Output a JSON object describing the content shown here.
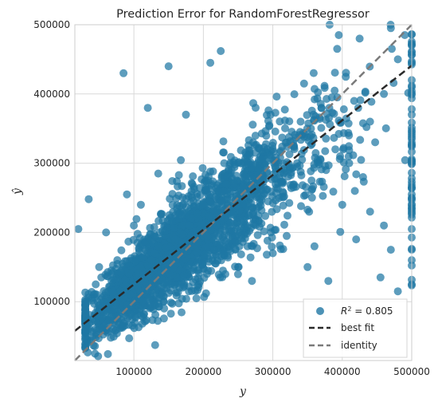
{
  "chart_data": {
    "type": "scatter",
    "title": "Prediction Error for RandomForestRegressor",
    "xlabel": "y",
    "ylabel": "ŷ",
    "xlim": [
      15000,
      500000
    ],
    "ylim": [
      15000,
      500000
    ],
    "x_ticks": [
      100000,
      200000,
      300000,
      400000,
      500000
    ],
    "y_ticks": [
      100000,
      200000,
      300000,
      400000,
      500000
    ],
    "x_tick_labels": [
      "100000",
      "200000",
      "300000",
      "400000",
      "500000"
    ],
    "y_tick_labels": [
      "100000",
      "200000",
      "300000",
      "400000",
      "500000"
    ],
    "grid": true,
    "legend_position": "bottom-right",
    "colors": {
      "points": "#1f77a4",
      "best_fit": "#2a2a2a",
      "identity": "#7a7a7a",
      "grid": "#d9d9d9"
    },
    "best_fit": {
      "slope": 0.79,
      "intercept": 46000
    },
    "identity": {
      "slope": 1,
      "intercept": 0
    },
    "legend": {
      "points_prefix": "R",
      "points_sup": "2",
      "points_suffix": " = 0.805",
      "best_fit": "best fit",
      "identity": "identity"
    },
    "sample_points": [
      [
        20000,
        205000
      ],
      [
        35000,
        248000
      ],
      [
        60000,
        88000
      ],
      [
        85000,
        430000
      ],
      [
        150000,
        440000
      ],
      [
        210000,
        445000
      ],
      [
        225000,
        462000
      ],
      [
        345000,
        415000
      ],
      [
        380000,
        130000
      ],
      [
        455000,
        135000
      ],
      [
        430000,
        280000
      ],
      [
        460000,
        210000
      ],
      [
        470000,
        175000
      ],
      [
        420000,
        190000
      ],
      [
        440000,
        230000
      ],
      [
        480000,
        115000
      ],
      [
        500000,
        125000
      ],
      [
        500000,
        160000
      ],
      [
        500000,
        250000
      ],
      [
        500000,
        330000
      ],
      [
        500000,
        370000
      ],
      [
        500000,
        420000
      ],
      [
        500000,
        470000
      ],
      [
        500000,
        205000
      ],
      [
        120000,
        380000
      ],
      [
        175000,
        370000
      ],
      [
        135000,
        285000
      ],
      [
        90000,
        255000
      ],
      [
        60000,
        200000
      ],
      [
        50000,
        150000
      ],
      [
        45000,
        125000
      ],
      [
        110000,
        240000
      ],
      [
        100000,
        210000
      ],
      [
        250000,
        150000
      ],
      [
        270000,
        130000
      ],
      [
        300000,
        170000
      ],
      [
        320000,
        195000
      ],
      [
        350000,
        150000
      ],
      [
        360000,
        180000
      ],
      [
        400000,
        240000
      ],
      [
        410000,
        300000
      ],
      [
        390000,
        320000
      ],
      [
        440000,
        360000
      ],
      [
        460000,
        400000
      ],
      [
        480000,
        450000
      ],
      [
        490000,
        485000
      ],
      [
        470000,
        495000
      ],
      [
        395000,
        485000
      ],
      [
        425000,
        480000
      ],
      [
        355000,
        350000
      ],
      [
        335000,
        300000
      ],
      [
        280000,
        275000
      ],
      [
        230000,
        300000
      ],
      [
        200000,
        240000
      ],
      [
        180000,
        210000
      ],
      [
        160000,
        190000
      ],
      [
        140000,
        160000
      ],
      [
        115000,
        130000
      ],
      [
        80000,
        95000
      ],
      [
        70000,
        70000
      ],
      [
        55000,
        60000
      ],
      [
        95000,
        110000
      ],
      [
        130000,
        170000
      ],
      [
        165000,
        220000
      ],
      [
        210000,
        255000
      ],
      [
        240000,
        230000
      ],
      [
        260000,
        290000
      ],
      [
        300000,
        320000
      ],
      [
        320000,
        330000
      ],
      [
        340000,
        360000
      ],
      [
        370000,
        380000
      ],
      [
        385000,
        395000
      ]
    ]
  }
}
